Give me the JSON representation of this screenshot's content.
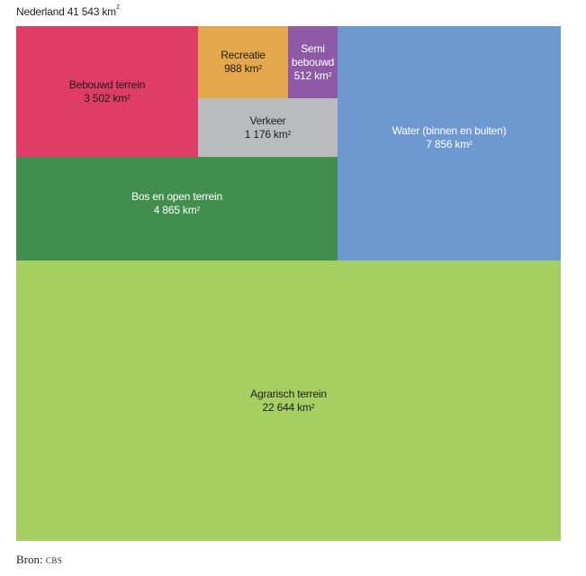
{
  "title": {
    "text": "Nederland 41 543 km",
    "sup": "2"
  },
  "source": {
    "prefix": "Bron:",
    "name": "cbs"
  },
  "chart_data": {
    "type": "treemap",
    "title": "Nederland 41 543 km²",
    "unit": "km²",
    "total": 41543,
    "categories": [
      "Bebouwd terrein",
      "Recreatie",
      "Semi bebouwd",
      "Verkeer",
      "Water (binnen en buiten)",
      "Bos en open terrein",
      "Agrarisch terrein"
    ],
    "values": [
      3502,
      988,
      512,
      1176,
      7856,
      4865,
      22644
    ],
    "colors": {
      "Bebouwd terrein": "#df3c66",
      "Recreatie": "#e4a84c",
      "Semi bebouwd": "#8e5aa8",
      "Verkeer": "#b9bbbe",
      "Water (binnen en buiten)": "#6e99d0",
      "Bos en open terrein": "#428e4f",
      "Agrarisch terrein": "#a6cf61"
    }
  },
  "tiles": [
    {
      "name": "Bebouwd terrein",
      "label_lines": [
        "Bebouwd terrein"
      ],
      "value_text": "3 502 km",
      "sup": "2",
      "color": "#df3c66",
      "text": "dark"
    },
    {
      "name": "Recreatie",
      "label_lines": [
        "Recreatie"
      ],
      "value_text": "988 km",
      "sup": "2",
      "color": "#e4a84c",
      "text": "dark"
    },
    {
      "name": "Semi bebouwd",
      "label_lines": [
        "Semi",
        "bebouwd"
      ],
      "value_text": "512 km",
      "sup": "2",
      "color": "#8e5aa8",
      "text": "light"
    },
    {
      "name": "Verkeer",
      "label_lines": [
        "Verkeer"
      ],
      "value_text": "1 176 km",
      "sup": "2",
      "color": "#b9bbbe",
      "text": "dark"
    },
    {
      "name": "Water (binnen en buiten)",
      "label_lines": [
        "Water (binnen en buiten)"
      ],
      "value_text": "7 856 km",
      "sup": "2",
      "color": "#6e99d0",
      "text": "light"
    },
    {
      "name": "Bos en open terrein",
      "label_lines": [
        "Bos en open terrein"
      ],
      "value_text": "4 865 km",
      "sup": "2",
      "color": "#428e4f",
      "text": "light"
    },
    {
      "name": "Agrarisch terrein",
      "label_lines": [
        "Agrarisch terrein"
      ],
      "value_text": "22 644 km",
      "sup": "2",
      "color": "#a6cf61",
      "text": "dark"
    }
  ]
}
